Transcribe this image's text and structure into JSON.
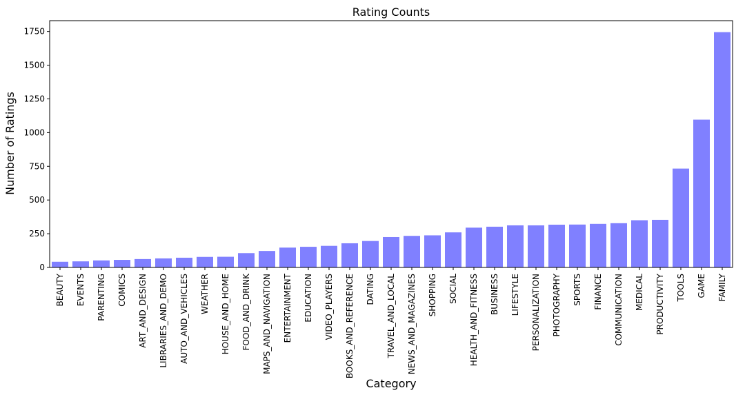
{
  "chart_data": {
    "type": "bar",
    "title": "Rating Counts",
    "xlabel": "Category",
    "ylabel": "Number of Ratings",
    "ylim": [
      0,
      1830
    ],
    "yticks": [
      0,
      250,
      500,
      750,
      1000,
      1250,
      1500,
      1750
    ],
    "grid": false,
    "bar_color": "#8080ff",
    "categories": [
      "BEAUTY",
      "EVENTS",
      "PARENTING",
      "COMICS",
      "ART_AND_DESIGN",
      "LIBRARIES_AND_DEMO",
      "AUTO_AND_VEHICLES",
      "WEATHER",
      "HOUSE_AND_HOME",
      "FOOD_AND_DRINK",
      "MAPS_AND_NAVIGATION",
      "ENTERTAINMENT",
      "EDUCATION",
      "VIDEO_PLAYERS",
      "BOOKS_AND_REFERENCE",
      "DATING",
      "TRAVEL_AND_LOCAL",
      "NEWS_AND_MAGAZINES",
      "SHOPPING",
      "SOCIAL",
      "HEALTH_AND_FITNESS",
      "BUSINESS",
      "LIFESTYLE",
      "PERSONALIZATION",
      "PHOTOGRAPHY",
      "SPORTS",
      "FINANCE",
      "COMMUNICATION",
      "MEDICAL",
      "PRODUCTIVITY",
      "TOOLS",
      "GAME",
      "FAMILY"
    ],
    "values": [
      42,
      45,
      52,
      56,
      62,
      67,
      72,
      78,
      79,
      106,
      122,
      147,
      153,
      160,
      179,
      196,
      225,
      234,
      238,
      260,
      295,
      302,
      312,
      312,
      317,
      318,
      323,
      328,
      350,
      353,
      733,
      1096,
      1745
    ]
  }
}
